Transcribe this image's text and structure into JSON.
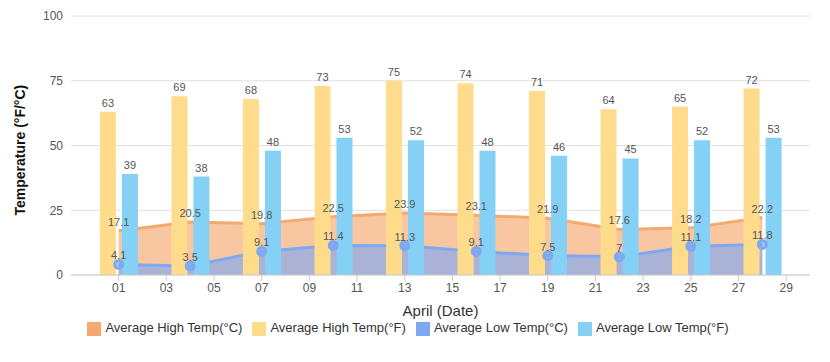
{
  "chart_data": {
    "type": "bar",
    "x_label": "April (Date)",
    "y_label": "Temperature (°F/°C)",
    "x": [
      1,
      4,
      7,
      10,
      13,
      16,
      19,
      22,
      25,
      28
    ],
    "xlim": [
      -1,
      30
    ],
    "xticks": [
      {
        "value": 1,
        "label": "01"
      },
      {
        "value": 3,
        "label": "03"
      },
      {
        "value": 5,
        "label": "05"
      },
      {
        "value": 7,
        "label": "07"
      },
      {
        "value": 9,
        "label": "09"
      },
      {
        "value": 11,
        "label": "11"
      },
      {
        "value": 13,
        "label": "13"
      },
      {
        "value": 15,
        "label": "15"
      },
      {
        "value": 17,
        "label": "17"
      },
      {
        "value": 19,
        "label": "19"
      },
      {
        "value": 21,
        "label": "21"
      },
      {
        "value": 23,
        "label": "23"
      },
      {
        "value": 25,
        "label": "25"
      },
      {
        "value": 27,
        "label": "27"
      },
      {
        "value": 29,
        "label": "29"
      }
    ],
    "ylim": [
      0,
      100
    ],
    "yticks": [
      0,
      25,
      50,
      75,
      100
    ],
    "grid": true,
    "legend": "bottom",
    "data_labels": true,
    "series": [
      {
        "name": "Average High Temp(°F)",
        "type": "bar",
        "color": "#ffdc8c",
        "values": [
          63,
          69,
          68,
          73,
          75,
          74,
          71,
          64,
          65,
          72
        ]
      },
      {
        "name": "Average Low Temp(°F)",
        "type": "bar",
        "color": "#85d1f5",
        "values": [
          39,
          38,
          48,
          53,
          52,
          48,
          46,
          45,
          52,
          53
        ]
      },
      {
        "name": "Average High Temp(°C)",
        "type": "area",
        "color": "#f5a96f",
        "marker": "none",
        "values": [
          17.1,
          20.5,
          19.8,
          22.5,
          23.9,
          23.1,
          21.9,
          17.6,
          18.2,
          22.2
        ]
      },
      {
        "name": "Average Low Temp(°C)",
        "type": "area",
        "color": "#7fa8f2",
        "marker": "circle",
        "values": [
          4.1,
          3.5,
          9.1,
          11.4,
          11.3,
          9.1,
          7.5,
          7,
          11.1,
          11.8
        ]
      }
    ]
  }
}
